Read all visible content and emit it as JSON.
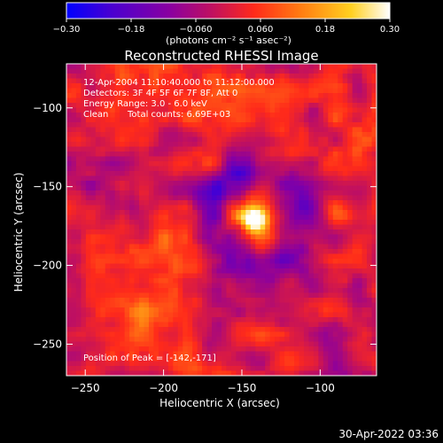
{
  "chart_data": {
    "type": "heatmap",
    "title": "Reconstructed RHESSI Image",
    "xlabel": "Heliocentric X (arcsec)",
    "ylabel": "Heliocentric Y (arcsec)",
    "xlim": [
      -262,
      -64
    ],
    "ylim": [
      -270,
      -72
    ],
    "x_ticks": [
      -250,
      -200,
      -150,
      -100
    ],
    "y_ticks": [
      -250,
      -200,
      -150,
      -100
    ],
    "x_tick_labels": [
      "−250",
      "−200",
      "−150",
      "−100"
    ],
    "y_tick_labels": [
      "−250",
      "−200",
      "−150",
      "−100"
    ],
    "colorbar": {
      "range": [
        -0.3,
        0.3
      ],
      "ticks": [
        -0.3,
        -0.18,
        -0.06,
        0.06,
        0.18,
        0.3
      ],
      "tick_labels": [
        "−0.30",
        "−0.18",
        "−0.060",
        "0.060",
        "0.18",
        "0.30"
      ],
      "units_label": "(photons cm⁻² s⁻¹ asec⁻²)",
      "colormap": [
        "#0000ff",
        "#4a00d0",
        "#8a00a0",
        "#c01060",
        "#ff2a1a",
        "#ff7a12",
        "#ffd020",
        "#ffffff"
      ]
    },
    "peak": {
      "x": -142,
      "y": -171
    },
    "annotations": {
      "time_range": "12-Apr-2004 11:10:40.000 to 11:12:00.000",
      "detectors": "Detectors: 3F 4F 5F 6F 7F 8F, Att 0",
      "energy_range": "Energy Range: 3.0 - 6.0 keV",
      "method": "Clean",
      "total_counts": "Total counts: 6.69E+03",
      "peak_position": "Position of Peak = [-142,-171]"
    }
  },
  "footer": {
    "timestamp": "30-Apr-2022 03:36"
  }
}
